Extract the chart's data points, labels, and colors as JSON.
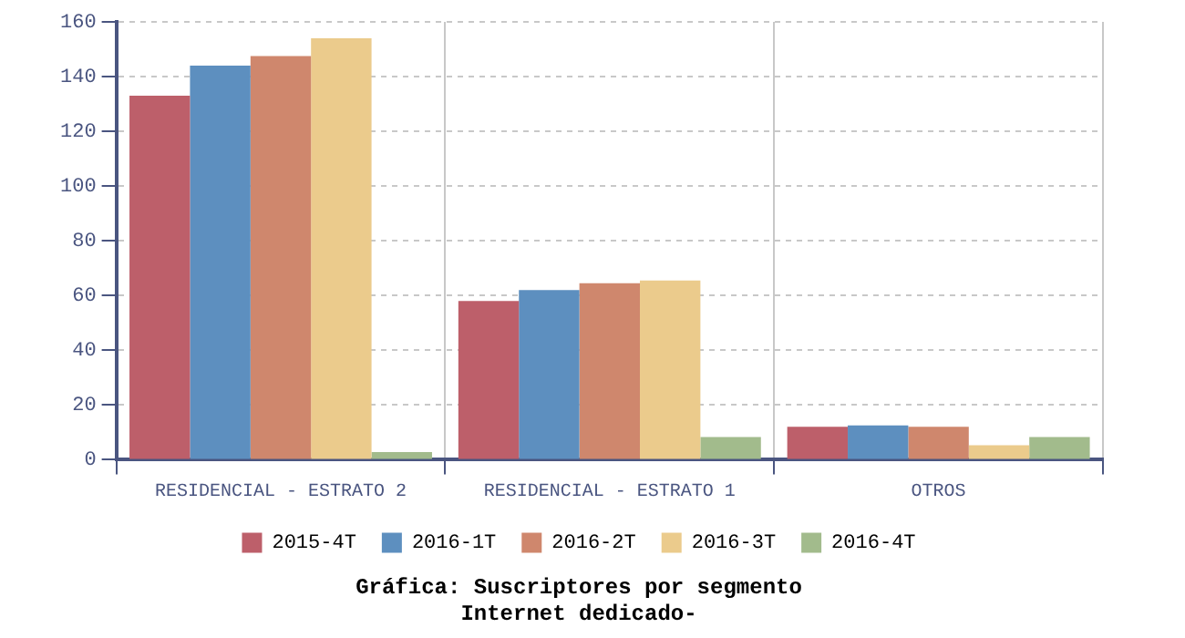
{
  "chart_data": {
    "type": "bar",
    "title": "Gráfica: Suscriptores por segmento",
    "subtitle": "Internet dedicado-",
    "categories": [
      "RESIDENCIAL - ESTRATO 2",
      "RESIDENCIAL - ESTRATO 1",
      "OTROS"
    ],
    "series": [
      {
        "name": "2015-4T",
        "color": "#bd5f6a",
        "values": [
          133,
          58,
          12
        ]
      },
      {
        "name": "2016-1T",
        "color": "#5d8fbf",
        "values": [
          144,
          62,
          12.5
        ]
      },
      {
        "name": "2016-2T",
        "color": "#cf876d",
        "values": [
          147.5,
          64.5,
          12
        ]
      },
      {
        "name": "2016-3T",
        "color": "#ebcb8c",
        "values": [
          154,
          65.5,
          5.3
        ]
      },
      {
        "name": "2016-4T",
        "color": "#a2bb8c",
        "values": [
          2.8,
          8.3,
          8.3
        ]
      }
    ],
    "ylim": [
      0,
      160
    ],
    "yticks": [
      0,
      20,
      40,
      60,
      80,
      100,
      120,
      140,
      160
    ],
    "grid": true,
    "legend": "bottom"
  }
}
